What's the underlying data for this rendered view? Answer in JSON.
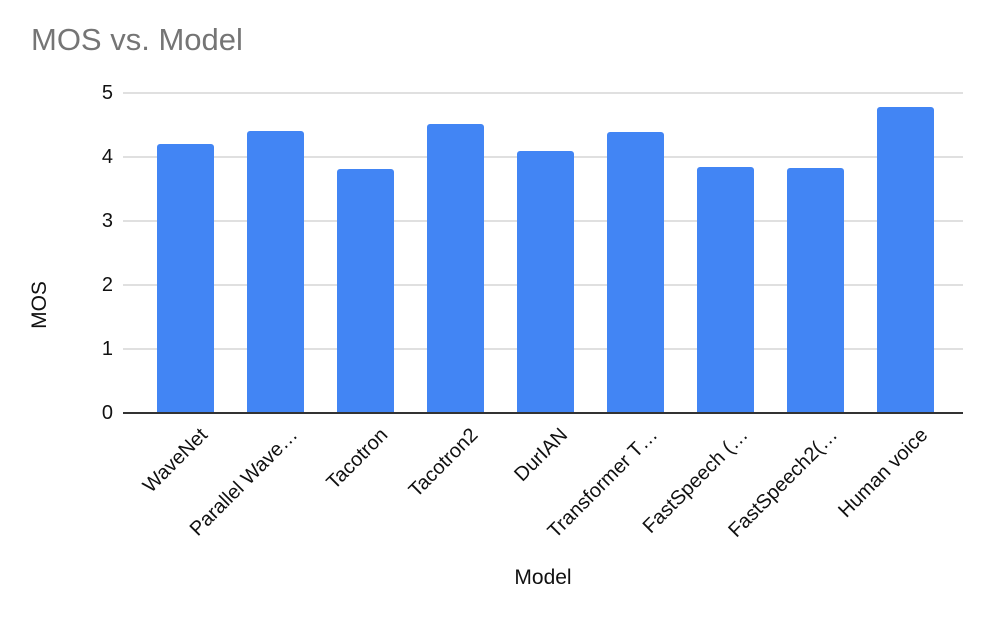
{
  "chart_data": {
    "type": "bar",
    "title": "MOS vs. Model",
    "xlabel": "Model",
    "ylabel": "MOS",
    "categories": [
      "WaveNet",
      "Parallel Wave…",
      "Tacotron",
      "Tacotron2",
      "DurIAN",
      "Transformer T…",
      "FastSpeech (…",
      "FastSpeech2(…",
      "Human voice"
    ],
    "values": [
      4.21,
      4.41,
      3.82,
      4.52,
      4.09,
      4.39,
      3.84,
      3.83,
      4.78
    ],
    "ylim": [
      0,
      5
    ],
    "yticks": [
      0,
      1,
      2,
      3,
      4,
      5
    ],
    "grid": true,
    "legend_position": "none",
    "xticklabel_rotation": -45,
    "colors": {
      "bar": "#4285f4",
      "title_text": "#757575",
      "axis_text": "#111111",
      "gridline": "#e0e0e0",
      "axis_line": "#333333",
      "background": "#ffffff"
    }
  }
}
